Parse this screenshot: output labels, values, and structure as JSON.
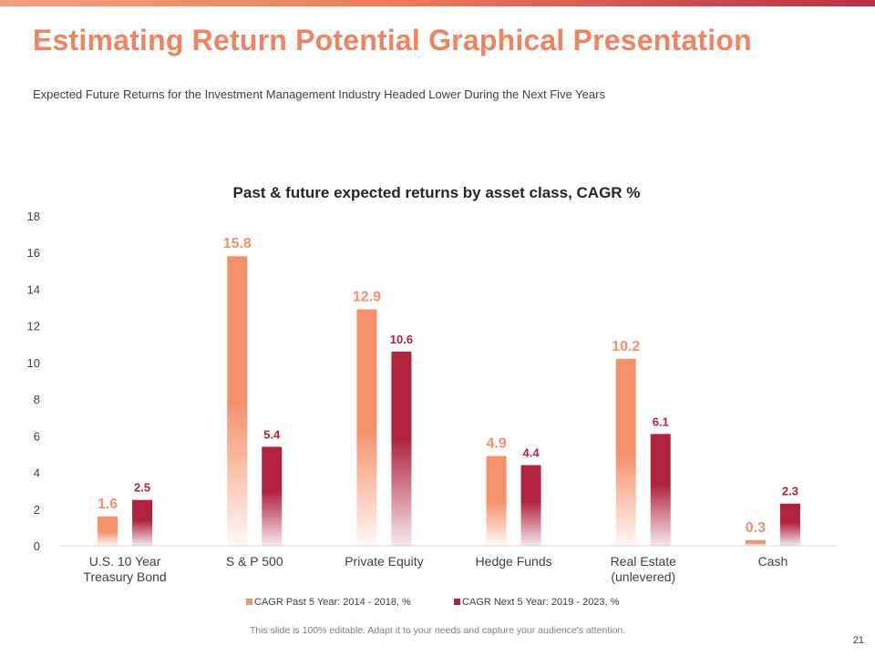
{
  "slide": {
    "title": "Estimating Return Potential Graphical Presentation",
    "subtitle": "Expected Future Returns for the Investment Management Industry Headed Lower During the Next Five Years",
    "footer_note": "This slide is 100% editable. Adapt it to your needs and capture your audience's attention.",
    "page_number": "21"
  },
  "colors": {
    "accent": "#f08462",
    "series1": "#f4906a",
    "series2": "#b1223f",
    "top_bar_start": "#f4a07c",
    "top_bar_end": "#b83046"
  },
  "chart_data": {
    "type": "bar",
    "title": "Past & future expected returns by asset class, CAGR %",
    "categories": [
      [
        "U.S. 10 Year",
        "Treasury Bond"
      ],
      [
        "S & P 500"
      ],
      [
        "Private Equity"
      ],
      [
        "Hedge Funds"
      ],
      [
        "Real Estate",
        "(unlevered)"
      ],
      [
        "Cash"
      ]
    ],
    "series": [
      {
        "name": "CAGR Past 5 Year: 2014 - 2018, %",
        "values": [
          1.6,
          15.8,
          12.9,
          4.9,
          10.2,
          0.3
        ],
        "labels": [
          "1.6",
          "15.8",
          "12.9",
          "4.9",
          "10.2",
          "0.3"
        ],
        "color": "#f4906a"
      },
      {
        "name": "CAGR Next 5 Year: 2019 - 2023, %",
        "values": [
          2.5,
          5.4,
          10.6,
          4.4,
          6.1,
          2.3
        ],
        "labels": [
          "2.5",
          "5.4",
          "10.6",
          "4.4",
          "6.1",
          "2.3"
        ],
        "color": "#b1223f"
      }
    ],
    "xlabel": "",
    "ylabel": "",
    "ylim": [
      0,
      18
    ],
    "yticks": [
      "0",
      "2",
      "4",
      "6",
      "8",
      "10",
      "12",
      "14",
      "16",
      "18"
    ],
    "grid": false,
    "legend": "bottom"
  }
}
